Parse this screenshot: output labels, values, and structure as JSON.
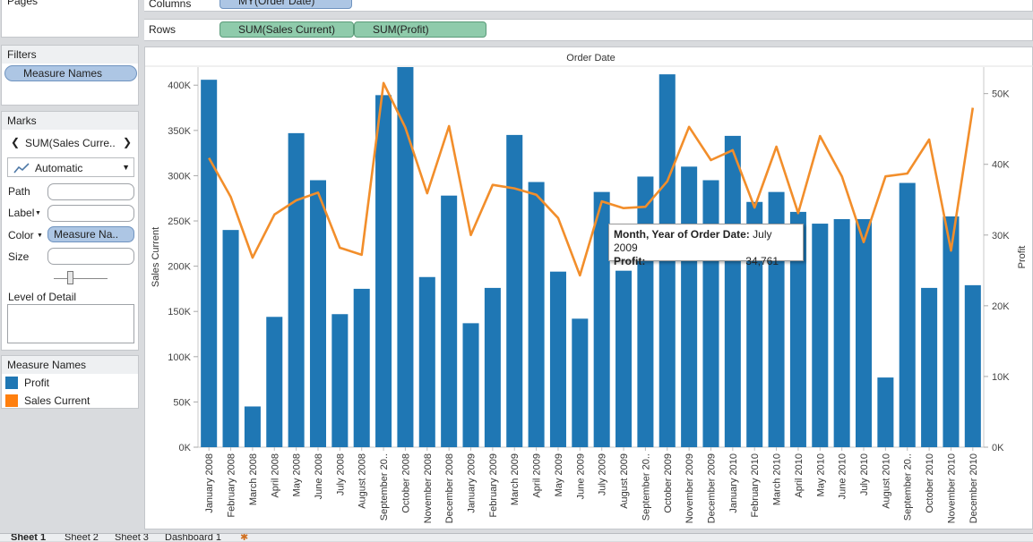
{
  "shelves": {
    "pages_label": "Pages",
    "columns_label": "Columns",
    "columns_pill": "MY(Order Date)",
    "rows_label": "Rows",
    "rows_pills": [
      "SUM(Sales Current)",
      "SUM(Profit)"
    ]
  },
  "filters": {
    "title": "Filters",
    "pill": "Measure Names"
  },
  "marks": {
    "title": "Marks",
    "selector": "SUM(Sales Curre..",
    "mark_type": "Automatic",
    "path_label": "Path",
    "label_label": "Label",
    "color_label": "Color",
    "color_pill": "Measure Na..",
    "size_label": "Size",
    "detail_label": "Level of Detail"
  },
  "legend": {
    "title": "Measure Names",
    "items": [
      {
        "label": "Profit",
        "color": "#1f77b4"
      },
      {
        "label": "Sales Current",
        "color": "#ff7f0e"
      }
    ]
  },
  "tabs": [
    "Sheet 1",
    "Sheet 2",
    "Sheet 3",
    "Dashboard 1"
  ],
  "tooltip": {
    "line1_label": "Month, Year of Order Date:",
    "line1_value": "July 2009",
    "line2_label": "Profit:",
    "line2_value": "34,761"
  },
  "chart_data": {
    "type": "bar",
    "title": "Order Date",
    "ylabel_left": "Sales Current",
    "ylabel_right": "Profit",
    "ylim_left": [
      0,
      420000
    ],
    "ylim_right": [
      0,
      53750
    ],
    "left_ticks": [
      "0K",
      "50K",
      "100K",
      "150K",
      "200K",
      "250K",
      "300K",
      "350K",
      "400K"
    ],
    "right_ticks": [
      "0K",
      "10K",
      "20K",
      "30K",
      "40K",
      "50K"
    ],
    "categories": [
      "January 2008",
      "February 2008",
      "March 2008",
      "April 2008",
      "May 2008",
      "June 2008",
      "July 2008",
      "August 2008",
      "September 20..",
      "October 2008",
      "November 2008",
      "December 2008",
      "January 2009",
      "February 2009",
      "March 2009",
      "April 2009",
      "May 2009",
      "June 2009",
      "July 2009",
      "August 2009",
      "September 20..",
      "October 2009",
      "November 2009",
      "December 2009",
      "January 2010",
      "February 2010",
      "March 2010",
      "April 2010",
      "May 2010",
      "June 2010",
      "July 2010",
      "August 2010",
      "September 20..",
      "October 2010",
      "November 2010",
      "December 2010"
    ],
    "series": [
      {
        "name": "Sales Current",
        "mark": "bar",
        "axis": "left",
        "color": "#1f77b4",
        "values": [
          406000,
          240000,
          45000,
          144000,
          347000,
          295000,
          147000,
          175000,
          389000,
          420000,
          188000,
          278000,
          137000,
          176000,
          345000,
          293000,
          194000,
          142000,
          282000,
          195000,
          299000,
          412000,
          310000,
          295000,
          344000,
          271000,
          282000,
          260000,
          247000,
          252000,
          252000,
          77000,
          292000,
          176000,
          255000,
          179000
        ]
      },
      {
        "name": "Profit",
        "mark": "line",
        "axis": "right",
        "color": "#f28e2b",
        "values": [
          40900,
          35400,
          26800,
          32900,
          34900,
          36000,
          28200,
          27200,
          51500,
          45200,
          35900,
          45400,
          30000,
          37100,
          36600,
          35700,
          32400,
          24300,
          34761,
          33800,
          34000,
          37600,
          45300,
          40600,
          42000,
          33900,
          42500,
          33100,
          44000,
          38300,
          29000,
          38300,
          38700,
          43500,
          27800,
          48000
        ]
      }
    ]
  }
}
